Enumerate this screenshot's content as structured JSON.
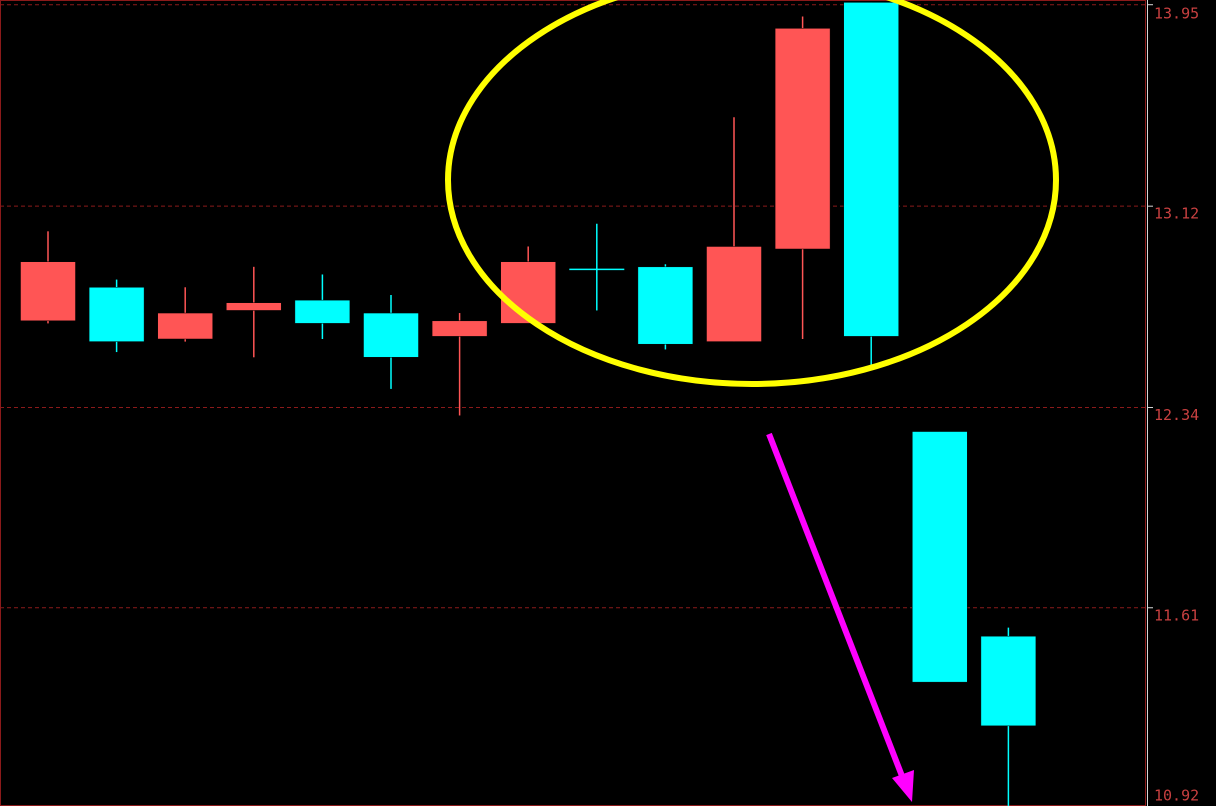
{
  "chart_data": {
    "type": "candlestick",
    "log_scale": true,
    "grid": true,
    "up_color": "#ff5555",
    "down_color": "#00ffff",
    "grid_color": "#8b1a1a",
    "ylim": [
      10.93,
      13.97
    ],
    "yticks": [
      13.95,
      13.12,
      12.34,
      11.61,
      10.92
    ],
    "open": [
      12.67,
      12.8,
      12.6,
      12.71,
      12.75,
      12.7,
      12.61,
      12.66,
      12.87,
      12.88,
      12.59,
      12.95,
      13.96,
      12.25,
      11.51
    ],
    "high": [
      13.02,
      12.83,
      12.8,
      12.88,
      12.85,
      12.77,
      12.7,
      12.96,
      13.05,
      12.89,
      13.48,
      13.9,
      13.96,
      12.25,
      11.54
    ],
    "low": [
      12.66,
      12.55,
      12.59,
      12.53,
      12.6,
      12.41,
      12.31,
      12.66,
      12.71,
      12.56,
      12.59,
      12.6,
      12.5,
      11.35,
      10.93
    ],
    "close": [
      12.9,
      12.59,
      12.7,
      12.74,
      12.66,
      12.53,
      12.67,
      12.9,
      12.87,
      12.58,
      12.96,
      13.85,
      12.61,
      11.35,
      11.2
    ]
  }
}
